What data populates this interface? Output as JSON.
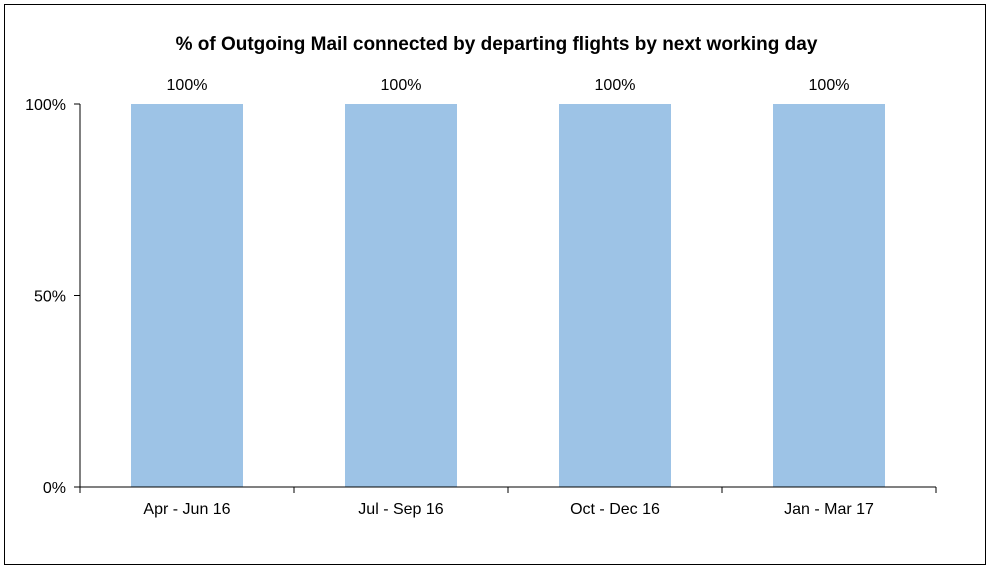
{
  "chart_data": {
    "type": "bar",
    "title": "% of Outgoing Mail connected by departing flights by next working day",
    "categories": [
      "Apr - Jun 16",
      "Jul - Sep 16",
      "Oct - Dec 16",
      "Jan - Mar 17"
    ],
    "values": [
      100,
      100,
      100,
      100
    ],
    "data_labels": [
      "100%",
      "100%",
      "100%",
      "100%"
    ],
    "ylim": [
      0,
      100
    ],
    "yticks": [
      0,
      50,
      100
    ],
    "ytick_labels": [
      "0%",
      "50%",
      "100%"
    ],
    "xlabel": "",
    "ylabel": "",
    "grid": false,
    "legend": "none",
    "colors": {
      "bar": "#9DC3E6",
      "axis": "#000000"
    }
  }
}
